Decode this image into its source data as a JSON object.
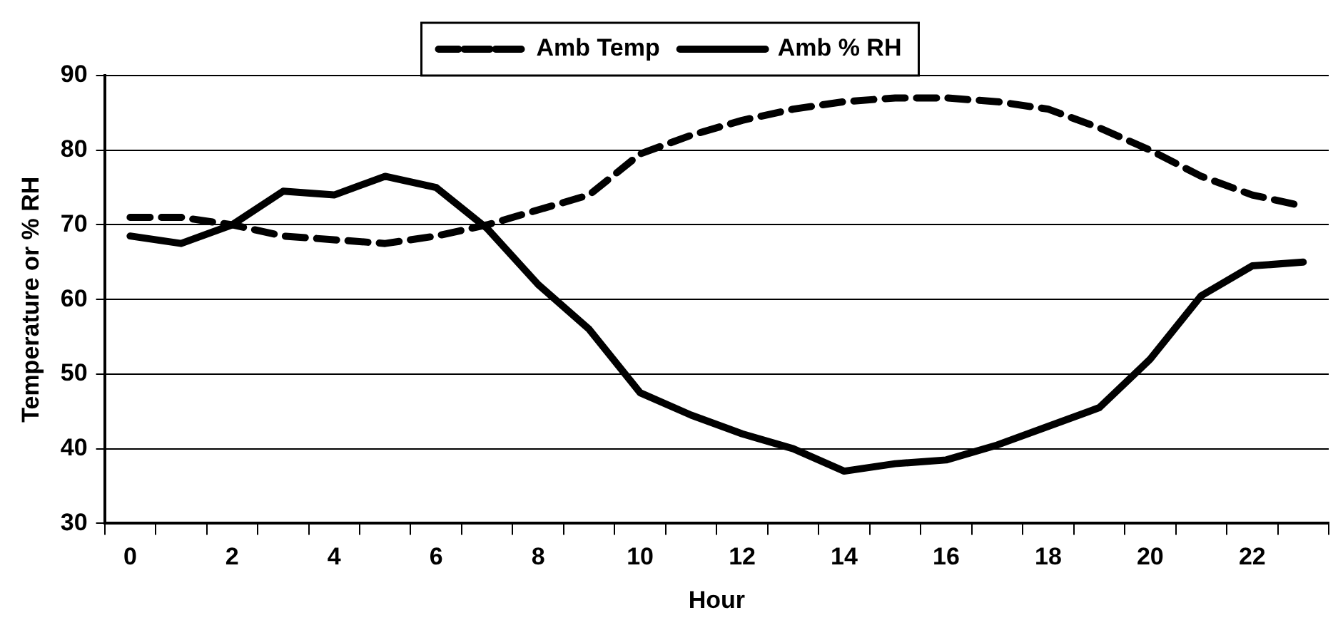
{
  "chart_data": {
    "type": "line",
    "xlabel": "Hour",
    "ylabel": "Temperature or % RH",
    "categories": [
      "0",
      null,
      "2",
      null,
      "4",
      null,
      "6",
      null,
      "8",
      null,
      "10",
      null,
      "12",
      null,
      "14",
      null,
      "16",
      null,
      "18",
      null,
      "20",
      null,
      "22",
      null
    ],
    "series": [
      {
        "name": "Amb Temp",
        "color": "#000000",
        "line_style": "dashed",
        "values": [
          71,
          71,
          70,
          68.5,
          68,
          67.5,
          68.5,
          70,
          72,
          74,
          79.5,
          82,
          84,
          85.5,
          86.5,
          87,
          87,
          86.5,
          85.5,
          83,
          80,
          76.5,
          74,
          72.5
        ]
      },
      {
        "name": "Amb % RH",
        "color": "#000000",
        "line_style": "solid",
        "values": [
          68.5,
          67.5,
          70,
          74.5,
          74,
          76.5,
          75,
          69.5,
          62,
          56,
          47.5,
          44.5,
          42,
          40,
          37,
          38,
          38.5,
          40.5,
          43,
          45.5,
          52,
          60.5,
          64.5,
          65
        ]
      }
    ],
    "ylim": [
      30,
      90
    ],
    "yticks": [
      30,
      40,
      50,
      60,
      70,
      80,
      90
    ],
    "grid": "y",
    "legend": "top",
    "marker": "none"
  }
}
